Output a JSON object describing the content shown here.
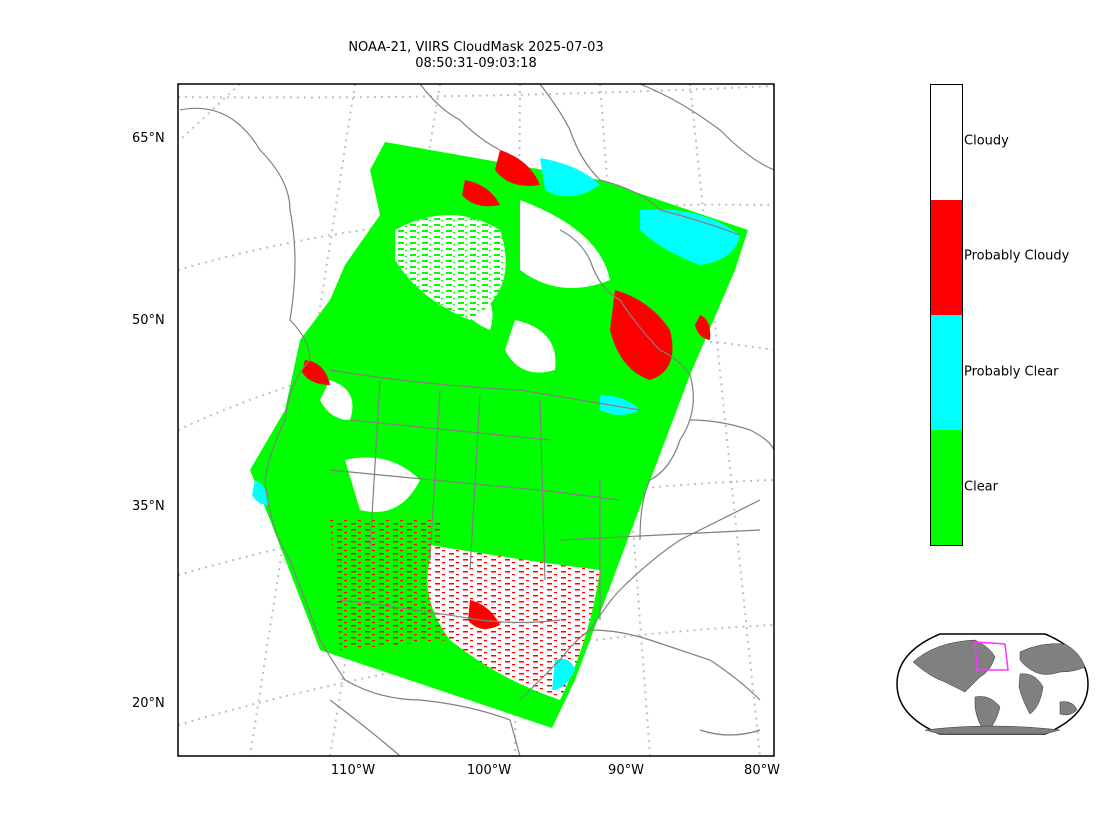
{
  "title": {
    "line1": "NOAA-21, VIIRS CloudMask 2025-07-03",
    "line2": "08:50:31-09:03:18"
  },
  "map": {
    "lat_labels": [
      "65°N",
      "50°N",
      "35°N",
      "20°N"
    ],
    "lon_labels": [
      "110°W",
      "100°W",
      "90°W",
      "80°W"
    ],
    "coastline_color": "#808080",
    "graticule_color": "#bfbfbf",
    "gridlines": true,
    "projection": "conic"
  },
  "colorbar": {
    "categories": [
      {
        "label": "Cloudy",
        "color": "#ffffff"
      },
      {
        "label": "Probably Cloudy",
        "color": "#ff0000"
      },
      {
        "label": "Probably Clear",
        "color": "#00ffff"
      },
      {
        "label": "Clear",
        "color": "#00ff00"
      }
    ]
  },
  "inset_globe": {
    "land_color": "#808080",
    "ocean_color": "#ffffff",
    "highlight_color": "#ff33ff"
  }
}
